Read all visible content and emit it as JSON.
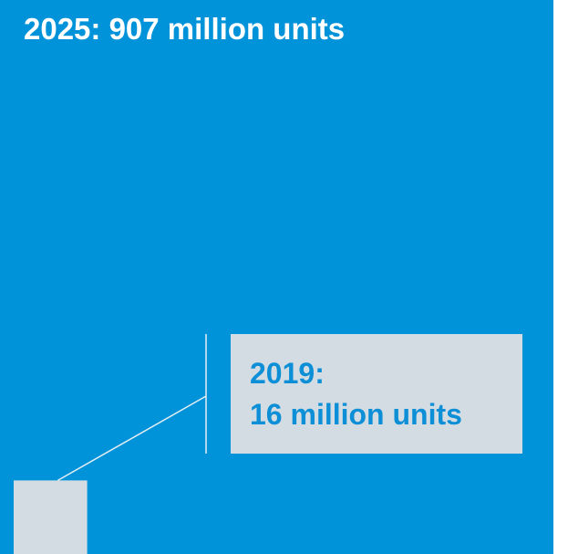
{
  "chart_data": {
    "type": "area",
    "categories": [
      "2019",
      "2025"
    ],
    "values": [
      16,
      907
    ],
    "unit": "million units",
    "colors": {
      "2025": "#0093d9",
      "2019": "#d3dce2",
      "callout_text": "#0c8fd6",
      "connector": "#e6eef3"
    }
  },
  "labels": {
    "big": "2025: 907 million units",
    "small_line1": "2019:",
    "small_line2": "16 million units"
  }
}
